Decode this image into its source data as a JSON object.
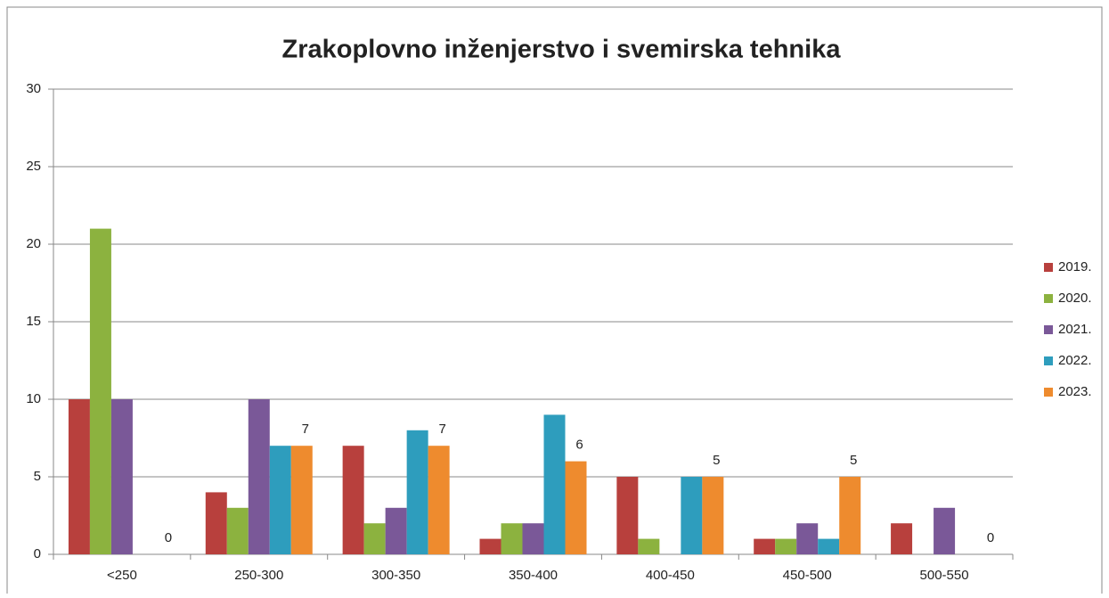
{
  "chart_data": {
    "type": "bar",
    "title": "Zrakoplovno inženjerstvo i svemirska tehnika",
    "categories": [
      "<250",
      "250-300",
      "300-350",
      "350-400",
      "400-450",
      "450-500",
      "500-550"
    ],
    "series": [
      {
        "name": "2019.",
        "color": "#b8403d",
        "values": [
          10,
          4,
          7,
          1,
          5,
          1,
          2
        ]
      },
      {
        "name": "2020.",
        "color": "#8cb23f",
        "values": [
          21,
          3,
          2,
          2,
          1,
          1,
          0
        ]
      },
      {
        "name": "2021.",
        "color": "#7a5898",
        "values": [
          10,
          10,
          3,
          2,
          0,
          2,
          3
        ]
      },
      {
        "name": "2022.",
        "color": "#2e9dbd",
        "values": [
          0,
          7,
          8,
          9,
          5,
          1,
          0
        ]
      },
      {
        "name": "2023.",
        "color": "#ee8b2e",
        "values": [
          0,
          7,
          7,
          6,
          5,
          5,
          0
        ],
        "data_labels": true
      }
    ],
    "ylim": [
      0,
      30
    ],
    "yticks": [
      0,
      5,
      10,
      15,
      20,
      25,
      30
    ],
    "grid": true,
    "legend": "right"
  }
}
